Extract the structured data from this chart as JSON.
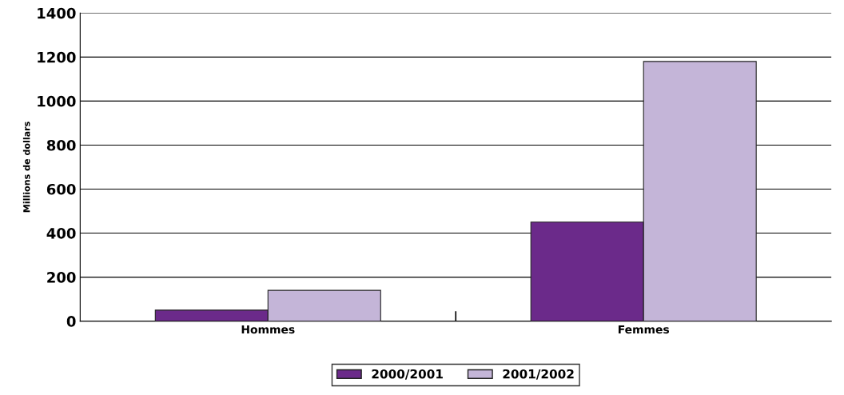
{
  "chart_data": {
    "type": "bar",
    "ylabel": "Millions de dollars",
    "categories": [
      "Hommes",
      "Femmes"
    ],
    "series": [
      {
        "name": "2000/2001",
        "color": "#6b2a8a",
        "values": [
          50,
          450
        ]
      },
      {
        "name": "2001/2002",
        "color": "#c4b5d8",
        "values": [
          140,
          1180
        ]
      }
    ],
    "ylim": [
      0,
      1400
    ],
    "yticks": [
      0,
      200,
      400,
      600,
      800,
      1000,
      1200,
      1400
    ],
    "grid": "y",
    "legend": "bottom"
  }
}
